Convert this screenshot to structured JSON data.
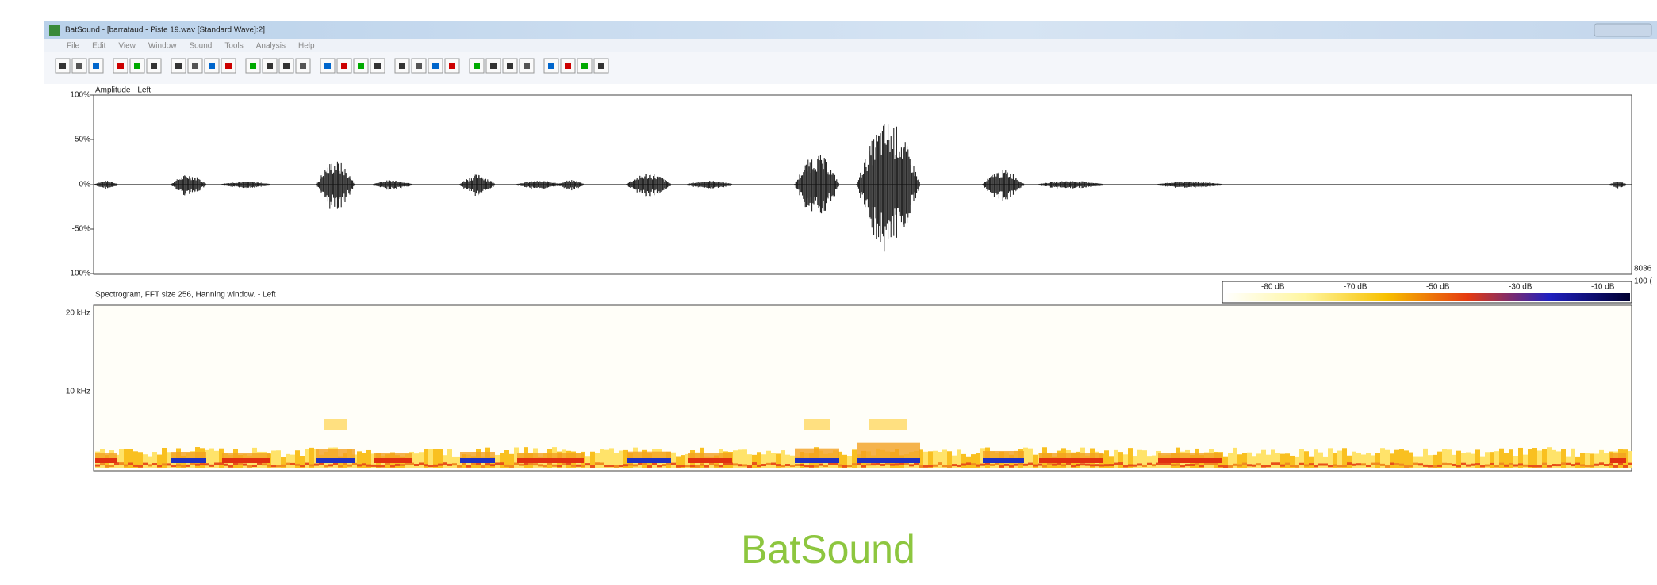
{
  "window": {
    "title": "BatSound - [barrataud - Piste 19.wav [Standard Wave]:2]",
    "menu": [
      "File",
      "Edit",
      "View",
      "Window",
      "Sound",
      "Tools",
      "Analysis",
      "Help"
    ]
  },
  "amplitude_panel": {
    "label": "Amplitude - Left",
    "y_labels": [
      "100%",
      "50%",
      "0%",
      "-50%",
      "-100%"
    ],
    "right_labels": [
      "8036",
      "100 ("
    ]
  },
  "spectrogram_panel": {
    "label": "Spectrogram, FFT size 256, Hanning window. - Left",
    "y_labels": [
      "20 kHz",
      "10 kHz"
    ],
    "colorbar_labels": [
      "-80 dB",
      "-70 dB",
      "-50 dB",
      "-30 dB",
      "-10 dB"
    ]
  },
  "caption": "BatSound"
}
